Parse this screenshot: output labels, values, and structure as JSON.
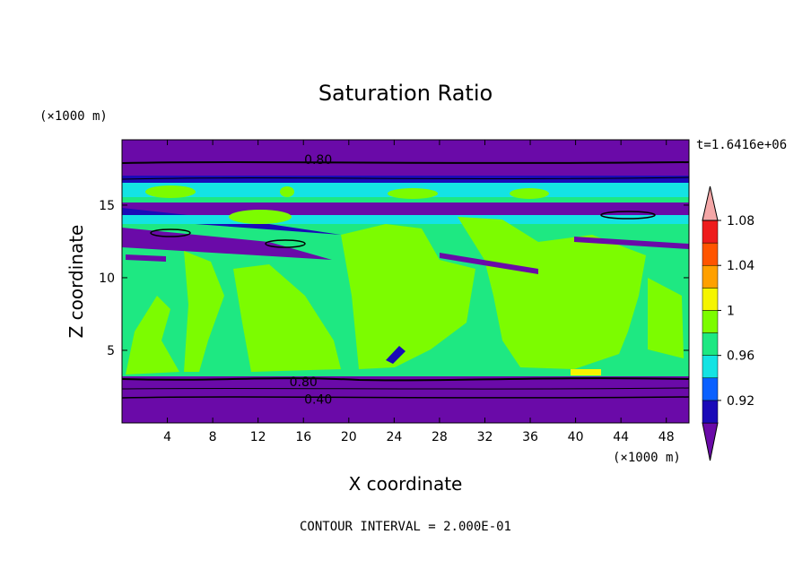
{
  "chart_data": {
    "type": "heatmap",
    "title": "Saturation Ratio",
    "xlabel": "X coordinate",
    "ylabel": "Z coordinate",
    "x_units": "(×1000 m)",
    "y_units": "(×1000 m)",
    "time_label": "t=1.6416e+06",
    "contour_interval_label": "CONTOUR INTERVAL = 2.000E-01",
    "xlim": [
      0,
      50
    ],
    "ylim": [
      0,
      19.5
    ],
    "x_ticks": [
      4,
      8,
      12,
      16,
      20,
      24,
      28,
      32,
      36,
      40,
      44,
      48
    ],
    "y_ticks": [
      5,
      10,
      15
    ],
    "contour_line_labels": [
      {
        "value": "0.80",
        "x": 17.3,
        "z": 18.2
      },
      {
        "value": "0.80",
        "x": 16.0,
        "z": 2.9
      },
      {
        "value": "0.40",
        "x": 17.3,
        "z": 1.7
      }
    ],
    "colorbar": {
      "levels": [
        0.92,
        0.96,
        1,
        1.04,
        1.08
      ],
      "tick_labels": [
        "0.92",
        "0.96",
        "1",
        "1.04",
        "1.08"
      ],
      "colors": [
        "#6a0aa8",
        "#1a0ab8",
        "#0a60ff",
        "#14e3e3",
        "#1ee882",
        "#7cfc00",
        "#f5f500",
        "#ffa000",
        "#ff5500",
        "#ee1c1c",
        "#f4a7a7"
      ]
    },
    "field_description_regions": [
      {
        "z_range": [
          0,
          3.3
        ],
        "value_class": "<0.92"
      },
      {
        "z_range": [
          3.3,
          13
        ],
        "value_class": "0.96-1 with patches 1-1.04"
      },
      {
        "z_range": [
          13,
          17
        ],
        "value_class": "mixed 0.92-1"
      },
      {
        "z_range": [
          17,
          19.5
        ],
        "value_class": "<0.92"
      }
    ]
  }
}
